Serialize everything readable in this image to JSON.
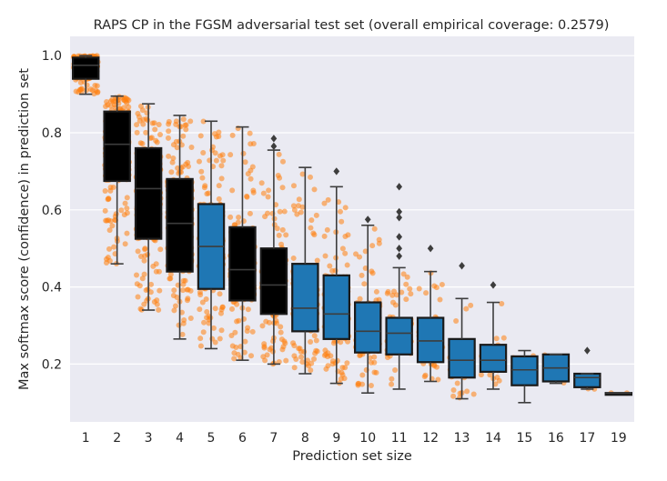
{
  "chart_data": {
    "type": "box",
    "title": "RAPS CP in the FGSM adversarial test set (overall empirical coverage: 0.2579)",
    "xlabel": "Prediction set size",
    "ylabel": "Max softmax score (confidence) in prediction set",
    "ylim": [
      0.05,
      1.05
    ],
    "yticks": [
      0.2,
      0.4,
      0.6,
      0.8,
      1.0
    ],
    "ytick_labels": [
      "0.2",
      "0.4",
      "0.6",
      "0.8",
      "1.0"
    ],
    "grid": true,
    "categories": [
      "1",
      "2",
      "3",
      "4",
      "5",
      "6",
      "7",
      "8",
      "9",
      "10",
      "11",
      "12",
      "13",
      "14",
      "15",
      "16",
      "17",
      "19"
    ],
    "box_color_dark": "#000000",
    "box_color_blue": "#1f77b4",
    "point_color": "#ff7f0e",
    "background_color": "#eaeaf2",
    "boxes": [
      {
        "whisker_low": 0.9,
        "q1": 0.94,
        "median": 0.975,
        "q3": 0.995,
        "whisker_high": 1.0,
        "outliers": [],
        "n_points": 180,
        "fill": "dark"
      },
      {
        "whisker_low": 0.46,
        "q1": 0.675,
        "median": 0.77,
        "q3": 0.855,
        "whisker_high": 0.895,
        "outliers": [],
        "n_points": 260,
        "fill": "dark"
      },
      {
        "whisker_low": 0.34,
        "q1": 0.525,
        "median": 0.655,
        "q3": 0.76,
        "whisker_high": 0.875,
        "outliers": [],
        "n_points": 280,
        "fill": "dark"
      },
      {
        "whisker_low": 0.265,
        "q1": 0.44,
        "median": 0.565,
        "q3": 0.68,
        "whisker_high": 0.845,
        "outliers": [],
        "n_points": 260,
        "fill": "dark"
      },
      {
        "whisker_low": 0.24,
        "q1": 0.395,
        "median": 0.505,
        "q3": 0.615,
        "whisker_high": 0.83,
        "outliers": [],
        "n_points": 230,
        "fill": "blue"
      },
      {
        "whisker_low": 0.21,
        "q1": 0.365,
        "median": 0.445,
        "q3": 0.555,
        "whisker_high": 0.815,
        "outliers": [],
        "n_points": 210,
        "fill": "dark"
      },
      {
        "whisker_low": 0.2,
        "q1": 0.33,
        "median": 0.405,
        "q3": 0.5,
        "whisker_high": 0.755,
        "outliers": [
          0.765,
          0.785
        ],
        "n_points": 190,
        "fill": "dark"
      },
      {
        "whisker_low": 0.175,
        "q1": 0.285,
        "median": 0.345,
        "q3": 0.46,
        "whisker_high": 0.71,
        "outliers": [],
        "n_points": 160,
        "fill": "blue"
      },
      {
        "whisker_low": 0.15,
        "q1": 0.265,
        "median": 0.33,
        "q3": 0.43,
        "whisker_high": 0.66,
        "outliers": [
          0.7
        ],
        "n_points": 140,
        "fill": "blue"
      },
      {
        "whisker_low": 0.125,
        "q1": 0.23,
        "median": 0.285,
        "q3": 0.36,
        "whisker_high": 0.56,
        "outliers": [
          0.575
        ],
        "n_points": 110,
        "fill": "blue"
      },
      {
        "whisker_low": 0.135,
        "q1": 0.225,
        "median": 0.28,
        "q3": 0.32,
        "whisker_high": 0.45,
        "outliers": [
          0.48,
          0.5,
          0.53,
          0.58,
          0.595,
          0.66
        ],
        "n_points": 90,
        "fill": "blue"
      },
      {
        "whisker_low": 0.155,
        "q1": 0.205,
        "median": 0.26,
        "q3": 0.32,
        "whisker_high": 0.44,
        "outliers": [
          0.5
        ],
        "n_points": 70,
        "fill": "blue"
      },
      {
        "whisker_low": 0.11,
        "q1": 0.165,
        "median": 0.21,
        "q3": 0.265,
        "whisker_high": 0.37,
        "outliers": [
          0.455
        ],
        "n_points": 45,
        "fill": "blue"
      },
      {
        "whisker_low": 0.135,
        "q1": 0.18,
        "median": 0.21,
        "q3": 0.25,
        "whisker_high": 0.36,
        "outliers": [
          0.405
        ],
        "n_points": 30,
        "fill": "blue"
      },
      {
        "whisker_low": 0.1,
        "q1": 0.145,
        "median": 0.185,
        "q3": 0.22,
        "whisker_high": 0.235,
        "outliers": [],
        "n_points": 12,
        "fill": "blue"
      },
      {
        "whisker_low": 0.15,
        "q1": 0.155,
        "median": 0.19,
        "q3": 0.225,
        "whisker_high": 0.225,
        "outliers": [],
        "n_points": 8,
        "fill": "blue"
      },
      {
        "whisker_low": 0.135,
        "q1": 0.14,
        "median": 0.165,
        "q3": 0.175,
        "whisker_high": 0.175,
        "outliers": [
          0.235
        ],
        "n_points": 5,
        "fill": "blue"
      },
      {
        "whisker_low": 0.125,
        "q1": 0.125,
        "median": 0.125,
        "q3": 0.125,
        "whisker_high": 0.125,
        "outliers": [],
        "n_points": 2,
        "fill": "blue"
      }
    ]
  }
}
